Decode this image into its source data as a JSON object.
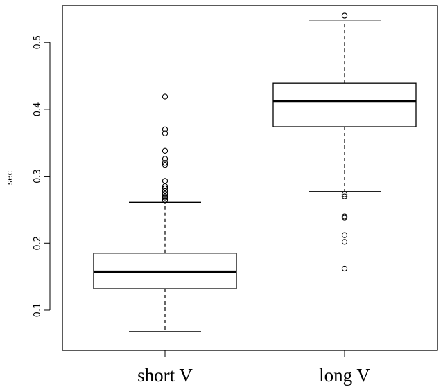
{
  "chart_data": {
    "type": "box",
    "ylabel": "sec",
    "xlabel": "",
    "ylim": [
      0.04,
      0.555
    ],
    "yticks": [
      0.1,
      0.2,
      0.3,
      0.4,
      0.5
    ],
    "ytick_labels": [
      "0.1",
      "0.2",
      "0.3",
      "0.4",
      "0.5"
    ],
    "categories": [
      "short V",
      "long V"
    ],
    "boxes": [
      {
        "category": "short V",
        "whisker_low": 0.068,
        "q1": 0.132,
        "median": 0.157,
        "q3": 0.185,
        "whisker_high": 0.261,
        "outliers": [
          0.264,
          0.268,
          0.27,
          0.274,
          0.278,
          0.282,
          0.285,
          0.293,
          0.317,
          0.32,
          0.326,
          0.338,
          0.364,
          0.37,
          0.419
        ]
      },
      {
        "category": "long V",
        "whisker_low": 0.277,
        "q1": 0.374,
        "median": 0.412,
        "q3": 0.439,
        "whisker_high": 0.532,
        "outliers": [
          0.162,
          0.202,
          0.212,
          0.238,
          0.24,
          0.27,
          0.273,
          0.54
        ]
      }
    ],
    "colors": {
      "box_fill": "#ffffff",
      "stroke": "#000000"
    }
  }
}
